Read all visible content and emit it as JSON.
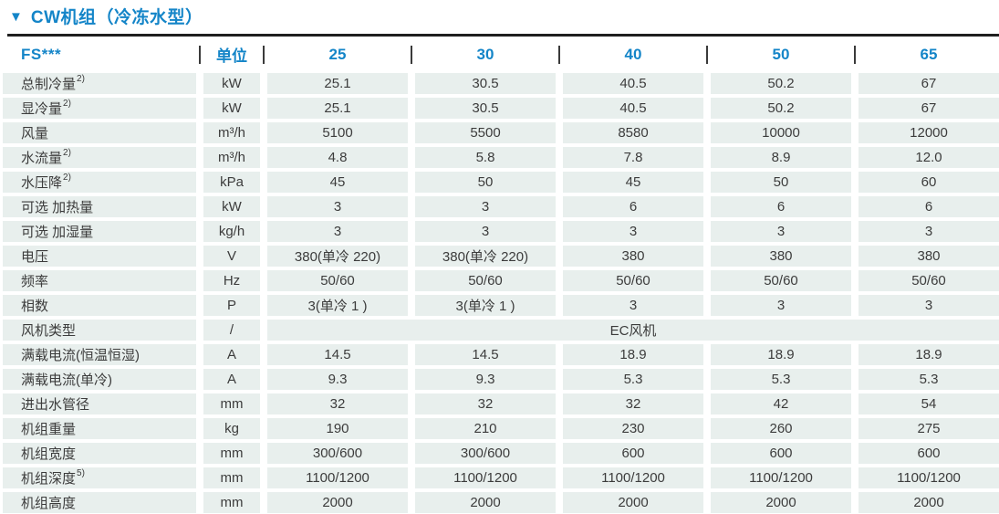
{
  "title": {
    "marker": "▼",
    "text": "CW机组（冷冻水型）"
  },
  "colors": {
    "accent_blue": "#1485c8",
    "row_band_bg": "#e8efed",
    "divider_dark": "#1f1f1f",
    "body_text": "#3c3c3c"
  },
  "table": {
    "header": {
      "model": "FS***",
      "unit": "单位",
      "columns": [
        "25",
        "30",
        "40",
        "50",
        "65"
      ]
    },
    "rows": [
      {
        "label": "总制冷量",
        "sup": "2)",
        "unit": "kW",
        "values": [
          "25.1",
          "30.5",
          "40.5",
          "50.2",
          "67"
        ]
      },
      {
        "label": "显冷量",
        "sup": "2)",
        "unit": "kW",
        "values": [
          "25.1",
          "30.5",
          "40.5",
          "50.2",
          "67"
        ]
      },
      {
        "label": "风量",
        "unit": "m³/h",
        "values": [
          "5100",
          "5500",
          "8580",
          "10000",
          "12000"
        ]
      },
      {
        "label": "水流量",
        "sup": "2)",
        "unit": "m³/h",
        "values": [
          "4.8",
          "5.8",
          "7.8",
          "8.9",
          "12.0"
        ]
      },
      {
        "label": "水压降",
        "sup": "2)",
        "unit": "kPa",
        "values": [
          "45",
          "50",
          "45",
          "50",
          "60"
        ]
      },
      {
        "label": "可选 加热量",
        "unit": "kW",
        "values": [
          "3",
          "3",
          "6",
          "6",
          "6"
        ]
      },
      {
        "label": "可选 加湿量",
        "unit": "kg/h",
        "values": [
          "3",
          "3",
          "3",
          "3",
          "3"
        ]
      },
      {
        "label": "电压",
        "unit": "V",
        "values": [
          "380(单冷 220)",
          "380(单冷 220)",
          "380",
          "380",
          "380"
        ]
      },
      {
        "label": "频率",
        "unit": "Hz",
        "values": [
          "50/60",
          "50/60",
          "50/60",
          "50/60",
          "50/60"
        ]
      },
      {
        "label": "相数",
        "unit": "P",
        "values": [
          "3(单冷 1 )",
          "3(单冷 1 )",
          "3",
          "3",
          "3"
        ]
      },
      {
        "label": "风机类型",
        "unit": "/",
        "span": true,
        "values": [
          "EC风机"
        ]
      },
      {
        "label": "满载电流(恒温恒湿)",
        "unit": "A",
        "values": [
          "14.5",
          "14.5",
          "18.9",
          "18.9",
          "18.9"
        ]
      },
      {
        "label": "满载电流(单冷)",
        "unit": "A",
        "values": [
          "9.3",
          "9.3",
          "5.3",
          "5.3",
          "5.3"
        ]
      },
      {
        "label": "进出水管径",
        "unit": "mm",
        "values": [
          "32",
          "32",
          "32",
          "42",
          "54"
        ]
      },
      {
        "label": "机组重量",
        "unit": "kg",
        "values": [
          "190",
          "210",
          "230",
          "260",
          "275"
        ]
      },
      {
        "label": "机组宽度",
        "unit": "mm",
        "values": [
          "300/600",
          "300/600",
          "600",
          "600",
          "600"
        ]
      },
      {
        "label": "机组深度",
        "sup": "5)",
        "unit": "mm",
        "values": [
          "1100/1200",
          "1100/1200",
          "1100/1200",
          "1100/1200",
          "1100/1200"
        ]
      },
      {
        "label": "机组高度",
        "unit": "mm",
        "values": [
          "2000",
          "2000",
          "2000",
          "2000",
          "2000"
        ]
      }
    ]
  }
}
